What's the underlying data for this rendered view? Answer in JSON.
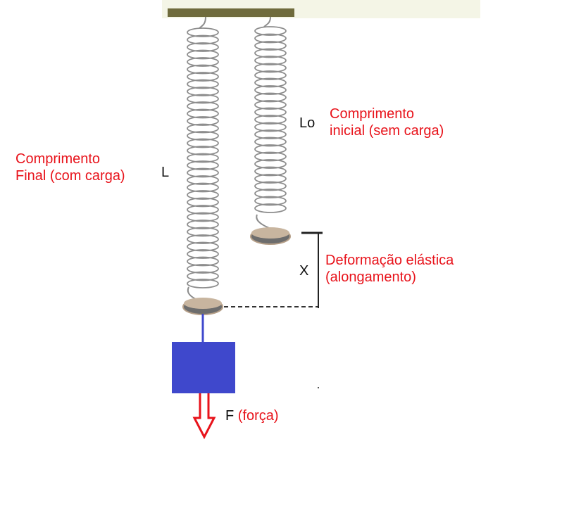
{
  "labels": {
    "final_length_caption_line1": "Comprimento",
    "final_length_caption_line2": "Final (com carga)",
    "final_length_symbol": "L",
    "initial_length_symbol": "Lo",
    "initial_length_caption_line1": "Comprimento",
    "initial_length_caption_line2": "inicial (sem carga)",
    "deformation_symbol": "X",
    "deformation_caption_line1": "Deformação elástica",
    "deformation_caption_line2": "(alongamento)",
    "force_symbol": "F",
    "force_caption": "(força)"
  },
  "colors": {
    "caption_red": "#e8131b",
    "symbol_black": "#111111",
    "ceiling_bar": "#6f6b3c",
    "ceiling_glow": "#eef0d6",
    "spring_coil": "#8d8d8d",
    "end_plate_top": "#c8b59f",
    "end_plate_bottom": "#707070",
    "mass_block": "#3f48cc",
    "hanger_rod": "#3f48cc",
    "force_arrow": "#e8131b",
    "measure_line": "#222222"
  },
  "icons": [
    "spring-icon",
    "weight-block-icon",
    "force-arrow-icon"
  ]
}
